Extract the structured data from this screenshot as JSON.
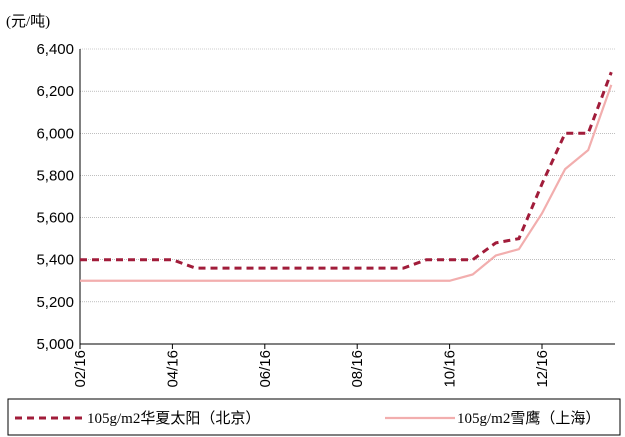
{
  "chart_data": {
    "type": "line",
    "y_label": "(元/吨)",
    "categories": [
      "02/16",
      null,
      null,
      null,
      "04/16",
      null,
      null,
      null,
      "06/16",
      null,
      null,
      null,
      "08/16",
      null,
      null,
      null,
      "10/16",
      null,
      null,
      null,
      "12/16",
      null,
      null,
      null
    ],
    "series": [
      {
        "name": "105g/m2华夏太阳（北京）",
        "color": "#a11c3a",
        "style": "dashed",
        "values": [
          5400,
          5400,
          5400,
          5400,
          5400,
          5360,
          5360,
          5360,
          5360,
          5360,
          5360,
          5360,
          5360,
          5360,
          5360,
          5400,
          5400,
          5400,
          5480,
          5500,
          5760,
          6000,
          6000,
          6290
        ]
      },
      {
        "name": "105g/m2雪鹰（上海）",
        "color": "#f2aeae",
        "style": "solid",
        "values": [
          5300,
          5300,
          5300,
          5300,
          5300,
          5300,
          5300,
          5300,
          5300,
          5300,
          5300,
          5300,
          5300,
          5300,
          5300,
          5300,
          5300,
          5330,
          5420,
          5450,
          5620,
          5830,
          5920,
          6230
        ]
      }
    ],
    "ylim": [
      5000,
      6400
    ],
    "yticks": [
      {
        "value": 5000,
        "label": "5,000"
      },
      {
        "value": 5200,
        "label": "5,200"
      },
      {
        "value": 5400,
        "label": "5,400"
      },
      {
        "value": 5600,
        "label": "5,600"
      },
      {
        "value": 5800,
        "label": "5,800"
      },
      {
        "value": 6000,
        "label": "6,000"
      },
      {
        "value": 6200,
        "label": "6,200"
      },
      {
        "value": 6400,
        "label": "6,400"
      }
    ],
    "grid": true
  }
}
